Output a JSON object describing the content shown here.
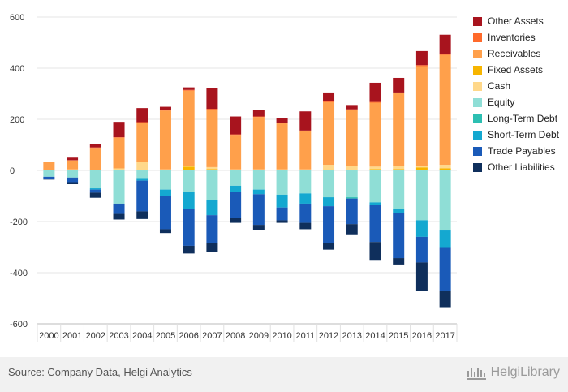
{
  "chart_data": {
    "type": "bar",
    "stacked": true,
    "categories": [
      "2000",
      "2001",
      "2002",
      "2003",
      "2004",
      "2005",
      "2006",
      "2007",
      "2008",
      "2009",
      "2010",
      "2011",
      "2012",
      "2013",
      "2014",
      "2015",
      "2016",
      "2017"
    ],
    "ylim": [
      -600,
      600
    ],
    "yticks": [
      600,
      400,
      200,
      0,
      -200,
      -400,
      -600
    ],
    "grid": true,
    "legend_position": "right",
    "positive_series": [
      {
        "name": "Receivables",
        "color": "#ffa04b",
        "values": [
          30,
          35,
          85,
          120,
          155,
          230,
          295,
          225,
          135,
          205,
          180,
          150,
          245,
          220,
          250,
          285,
          390,
          430
        ]
      },
      {
        "name": "Inventories",
        "color": "#ff6a2b",
        "values": [
          1,
          1,
          2,
          2,
          2,
          2,
          3,
          3,
          2,
          2,
          2,
          2,
          3,
          2,
          3,
          3,
          4,
          4
        ]
      },
      {
        "name": "Other Assets",
        "color": "#a8141e",
        "values": [
          0,
          10,
          12,
          60,
          55,
          13,
          10,
          80,
          70,
          25,
          18,
          75,
          35,
          17,
          75,
          57,
          55,
          75
        ]
      }
    ],
    "negative_series": [
      {
        "name": "Fixed Assets",
        "color": "#f7b500",
        "values": [
          1,
          1,
          1,
          1,
          2,
          2,
          15,
          5,
          2,
          2,
          2,
          2,
          4,
          3,
          5,
          5,
          12,
          8
        ]
      },
      {
        "name": "Cash",
        "color": "#ffd88a",
        "values": [
          1,
          3,
          2,
          7,
          30,
          2,
          2,
          8,
          2,
          2,
          2,
          2,
          18,
          14,
          10,
          12,
          6,
          14
        ]
      },
      {
        "name": "Equity",
        "color": "#8fded6",
        "values": [
          -25,
          -28,
          -70,
          -130,
          -30,
          -75,
          -85,
          -115,
          -60,
          -75,
          -95,
          -90,
          -105,
          -105,
          -125,
          -150,
          -195,
          -235
        ]
      },
      {
        "name": "Long-Term Debt",
        "color": "#2dbfb2",
        "values": [
          0,
          0,
          0,
          0,
          0,
          0,
          0,
          0,
          0,
          0,
          0,
          0,
          0,
          -5,
          0,
          0,
          0,
          0
        ]
      },
      {
        "name": "Short-Term Debt",
        "color": "#14a8d0",
        "values": [
          0,
          0,
          -5,
          0,
          -10,
          -25,
          -65,
          -60,
          -25,
          -18,
          -50,
          -40,
          -35,
          0,
          -10,
          -18,
          -65,
          -65
        ]
      },
      {
        "name": "Trade Payables",
        "color": "#1a5ab8",
        "values": [
          -8,
          -18,
          -12,
          -40,
          -120,
          -130,
          -145,
          -110,
          -100,
          -120,
          -50,
          -75,
          -145,
          -100,
          -145,
          -175,
          -100,
          -170
        ]
      },
      {
        "name": "Other Liabilities",
        "color": "#0f2f5c",
        "values": [
          -3,
          -8,
          -20,
          -22,
          -30,
          -15,
          -30,
          -35,
          -20,
          -20,
          -10,
          -25,
          -25,
          -40,
          -70,
          -25,
          -110,
          -65
        ]
      }
    ],
    "legend_order": [
      "Other Assets",
      "Inventories",
      "Receivables",
      "Fixed Assets",
      "Cash",
      "Equity",
      "Long-Term Debt",
      "Short-Term Debt",
      "Trade Payables",
      "Other Liabilities"
    ]
  },
  "legend_colors": {
    "Other Assets": "#a8141e",
    "Inventories": "#ff6a2b",
    "Receivables": "#ffa04b",
    "Fixed Assets": "#f7b500",
    "Cash": "#ffd88a",
    "Equity": "#8fded6",
    "Long-Term Debt": "#2dbfb2",
    "Short-Term Debt": "#14a8d0",
    "Trade Payables": "#1a5ab8",
    "Other Liabilities": "#0f2f5c"
  },
  "footer": {
    "source": "Source: Company Data, Helgi Analytics",
    "brand": "HelgiLibrary"
  }
}
